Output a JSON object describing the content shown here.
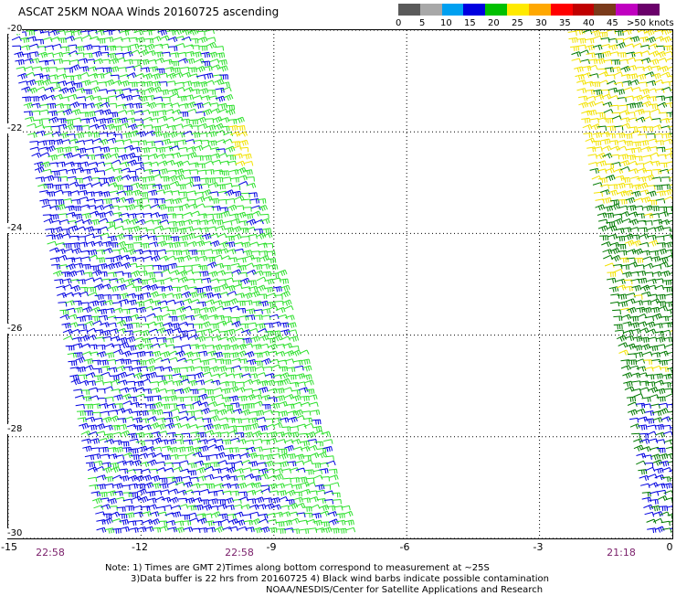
{
  "title": "ASCAT 25KM NOAA Winds 20160725 ascending",
  "legend": {
    "colors": [
      "#5a5a5a",
      "#a8a8a8",
      "#00a0f0",
      "#0000e0",
      "#00c000",
      "#ffea00",
      "#ffa800",
      "#ff0000",
      "#c00000",
      "#7a3a1a",
      "#c000c0",
      "#6a006a"
    ],
    "labels": [
      "0",
      "5",
      "10",
      "15",
      "20",
      "25",
      "30",
      "35",
      "40",
      "45",
      ">50 knots"
    ]
  },
  "chart_data": {
    "type": "map",
    "xlim": [
      -15,
      0
    ],
    "ylim": [
      -30,
      -20
    ],
    "xticks": [
      "-15",
      "-12",
      "-9",
      "-6",
      "-3",
      "0"
    ],
    "yticks": [
      "-20",
      "-22",
      "-24",
      "-26",
      "-28",
      "-30"
    ],
    "grid": true,
    "times": [
      "22:58",
      "22:58",
      "21:18"
    ]
  },
  "notes": {
    "line1": "Note: 1) Times are GMT 2)Times along bottom correspond to measurement at ~25S",
    "line2": "3)Data buffer is 22 hrs from 20160725 4) Black wind barbs indicate possible contamination",
    "line3": "NOAA/NESDIS/Center for Satellite Applications and Research"
  }
}
